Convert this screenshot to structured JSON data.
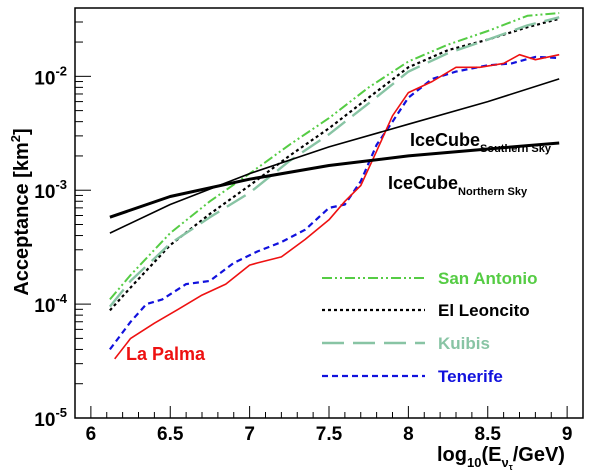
{
  "chart_data": {
    "type": "line",
    "xlabel": {
      "main": "log",
      "sub1": "10",
      "mid": "(E",
      "sub2": "ν",
      "sub3": "τ",
      "end": "/GeV)"
    },
    "ylabel": {
      "main": "Acceptance [km",
      "sup": "2",
      "end": "]"
    },
    "xlim": [
      5.9,
      9.1
    ],
    "ylim_log10": [
      -5,
      -1.4
    ],
    "y_log_scale": true,
    "x_ticks": [
      6,
      6.5,
      7,
      7.5,
      8,
      8.5,
      9
    ],
    "x_tick_labels": [
      "6",
      "6.5",
      "7",
      "7.5",
      "8",
      "8.5",
      "9"
    ],
    "y_ticks": [
      {
        "exp": -5,
        "base": "10",
        "sup": "-5"
      },
      {
        "exp": -4,
        "base": "10",
        "sup": "-4"
      },
      {
        "exp": -3,
        "base": "10",
        "sup": "-3"
      },
      {
        "exp": -2,
        "base": "10",
        "sup": "-2"
      }
    ],
    "grid": false,
    "legend_position": "bottom-right",
    "series": [
      {
        "name": "San Antonio",
        "color": "#55cc44",
        "dash": "10 3 2 3 2 3",
        "width": 2,
        "in_legend": true,
        "x": [
          6.12,
          6.25,
          6.5,
          6.75,
          7.0,
          7.25,
          7.5,
          7.75,
          8.0,
          8.25,
          8.5,
          8.75,
          8.95
        ],
        "y": [
          0.00011,
          0.00018,
          0.00042,
          0.0008,
          0.0014,
          0.0025,
          0.0043,
          0.008,
          0.0135,
          0.019,
          0.025,
          0.034,
          0.036
        ]
      },
      {
        "name": "El Leoncito",
        "color": "#000000",
        "dash": "3 3",
        "width": 2.2,
        "in_legend": true,
        "x": [
          6.12,
          6.25,
          6.5,
          6.75,
          7.0,
          7.25,
          7.5,
          7.75,
          8.0,
          8.25,
          8.5,
          8.75,
          8.95
        ],
        "y": [
          8.8e-05,
          0.00014,
          0.00033,
          0.00062,
          0.0011,
          0.002,
          0.0035,
          0.0065,
          0.012,
          0.017,
          0.021,
          0.027,
          0.032
        ]
      },
      {
        "name": "Kuibis",
        "color": "#88c4a4",
        "dash": "22 9",
        "width": 2.4,
        "in_legend": true,
        "x": [
          6.12,
          6.25,
          6.5,
          6.75,
          7.0,
          7.25,
          7.5,
          7.75,
          8.0,
          8.25,
          8.5,
          8.75,
          8.95
        ],
        "y": [
          9.5e-05,
          0.00016,
          0.00034,
          0.00058,
          0.00095,
          0.0018,
          0.0031,
          0.0058,
          0.011,
          0.016,
          0.021,
          0.028,
          0.033
        ]
      },
      {
        "name": "Tenerife",
        "color": "#1111dd",
        "dash": "6 4",
        "width": 2.2,
        "in_legend": true,
        "x": [
          6.12,
          6.25,
          6.35,
          6.45,
          6.6,
          6.75,
          6.9,
          7.05,
          7.2,
          7.35,
          7.5,
          7.6,
          7.7,
          7.8,
          7.9,
          8.0,
          8.15,
          8.3,
          8.5,
          8.65,
          8.8,
          8.95
        ],
        "y": [
          4e-05,
          7e-05,
          0.0001,
          0.00011,
          0.00015,
          0.00016,
          0.00023,
          0.00029,
          0.00035,
          0.00045,
          0.0007,
          0.00075,
          0.0012,
          0.0025,
          0.004,
          0.0065,
          0.0095,
          0.011,
          0.0125,
          0.013,
          0.0148,
          0.0145
        ]
      },
      {
        "name": "La Palma",
        "color": "#ee1111",
        "dash": "",
        "width": 1.6,
        "in_legend": false,
        "x": [
          6.15,
          6.25,
          6.4,
          6.55,
          6.7,
          6.85,
          7.0,
          7.05,
          7.2,
          7.35,
          7.5,
          7.6,
          7.7,
          7.8,
          7.9,
          8.0,
          8.15,
          8.3,
          8.45,
          8.6,
          8.7,
          8.8,
          8.95
        ],
        "y": [
          3.3e-05,
          5e-05,
          6.8e-05,
          9e-05,
          0.00012,
          0.00015,
          0.00022,
          0.00023,
          0.00026,
          0.00037,
          0.00055,
          0.0008,
          0.0011,
          0.0022,
          0.0045,
          0.0072,
          0.009,
          0.012,
          0.012,
          0.013,
          0.0155,
          0.014,
          0.0155
        ]
      },
      {
        "name": "IceCube Southern Sky",
        "color": "#000000",
        "dash": "",
        "width": 1.6,
        "in_legend": false,
        "x": [
          6.12,
          6.5,
          7.0,
          7.5,
          8.0,
          8.5,
          8.95
        ],
        "y": [
          0.00042,
          0.00075,
          0.0014,
          0.0024,
          0.0038,
          0.006,
          0.0095
        ]
      },
      {
        "name": "IceCube Northern Sky",
        "color": "#000000",
        "dash": "",
        "width": 3,
        "in_legend": false,
        "x": [
          6.12,
          6.5,
          7.0,
          7.5,
          8.0,
          8.5,
          8.95
        ],
        "y": [
          0.00058,
          0.00088,
          0.00125,
          0.00165,
          0.002,
          0.0023,
          0.0026
        ]
      }
    ],
    "legend": [
      {
        "label": "San Antonio",
        "series": 0
      },
      {
        "label": "El Leoncito",
        "series": 1
      },
      {
        "label": "Kuibis",
        "series": 2
      },
      {
        "label": "Tenerife",
        "series": 3
      }
    ],
    "annotations": [
      {
        "name": "la-palma",
        "text": "La Palma",
        "color": "#ee1111"
      },
      {
        "name": "icecube-southern",
        "text": "IceCube",
        "sub": "Southern Sky",
        "color": "#000000"
      },
      {
        "name": "icecube-northern",
        "text": "IceCube",
        "sub": "Northern Sky",
        "color": "#000000"
      }
    ]
  }
}
